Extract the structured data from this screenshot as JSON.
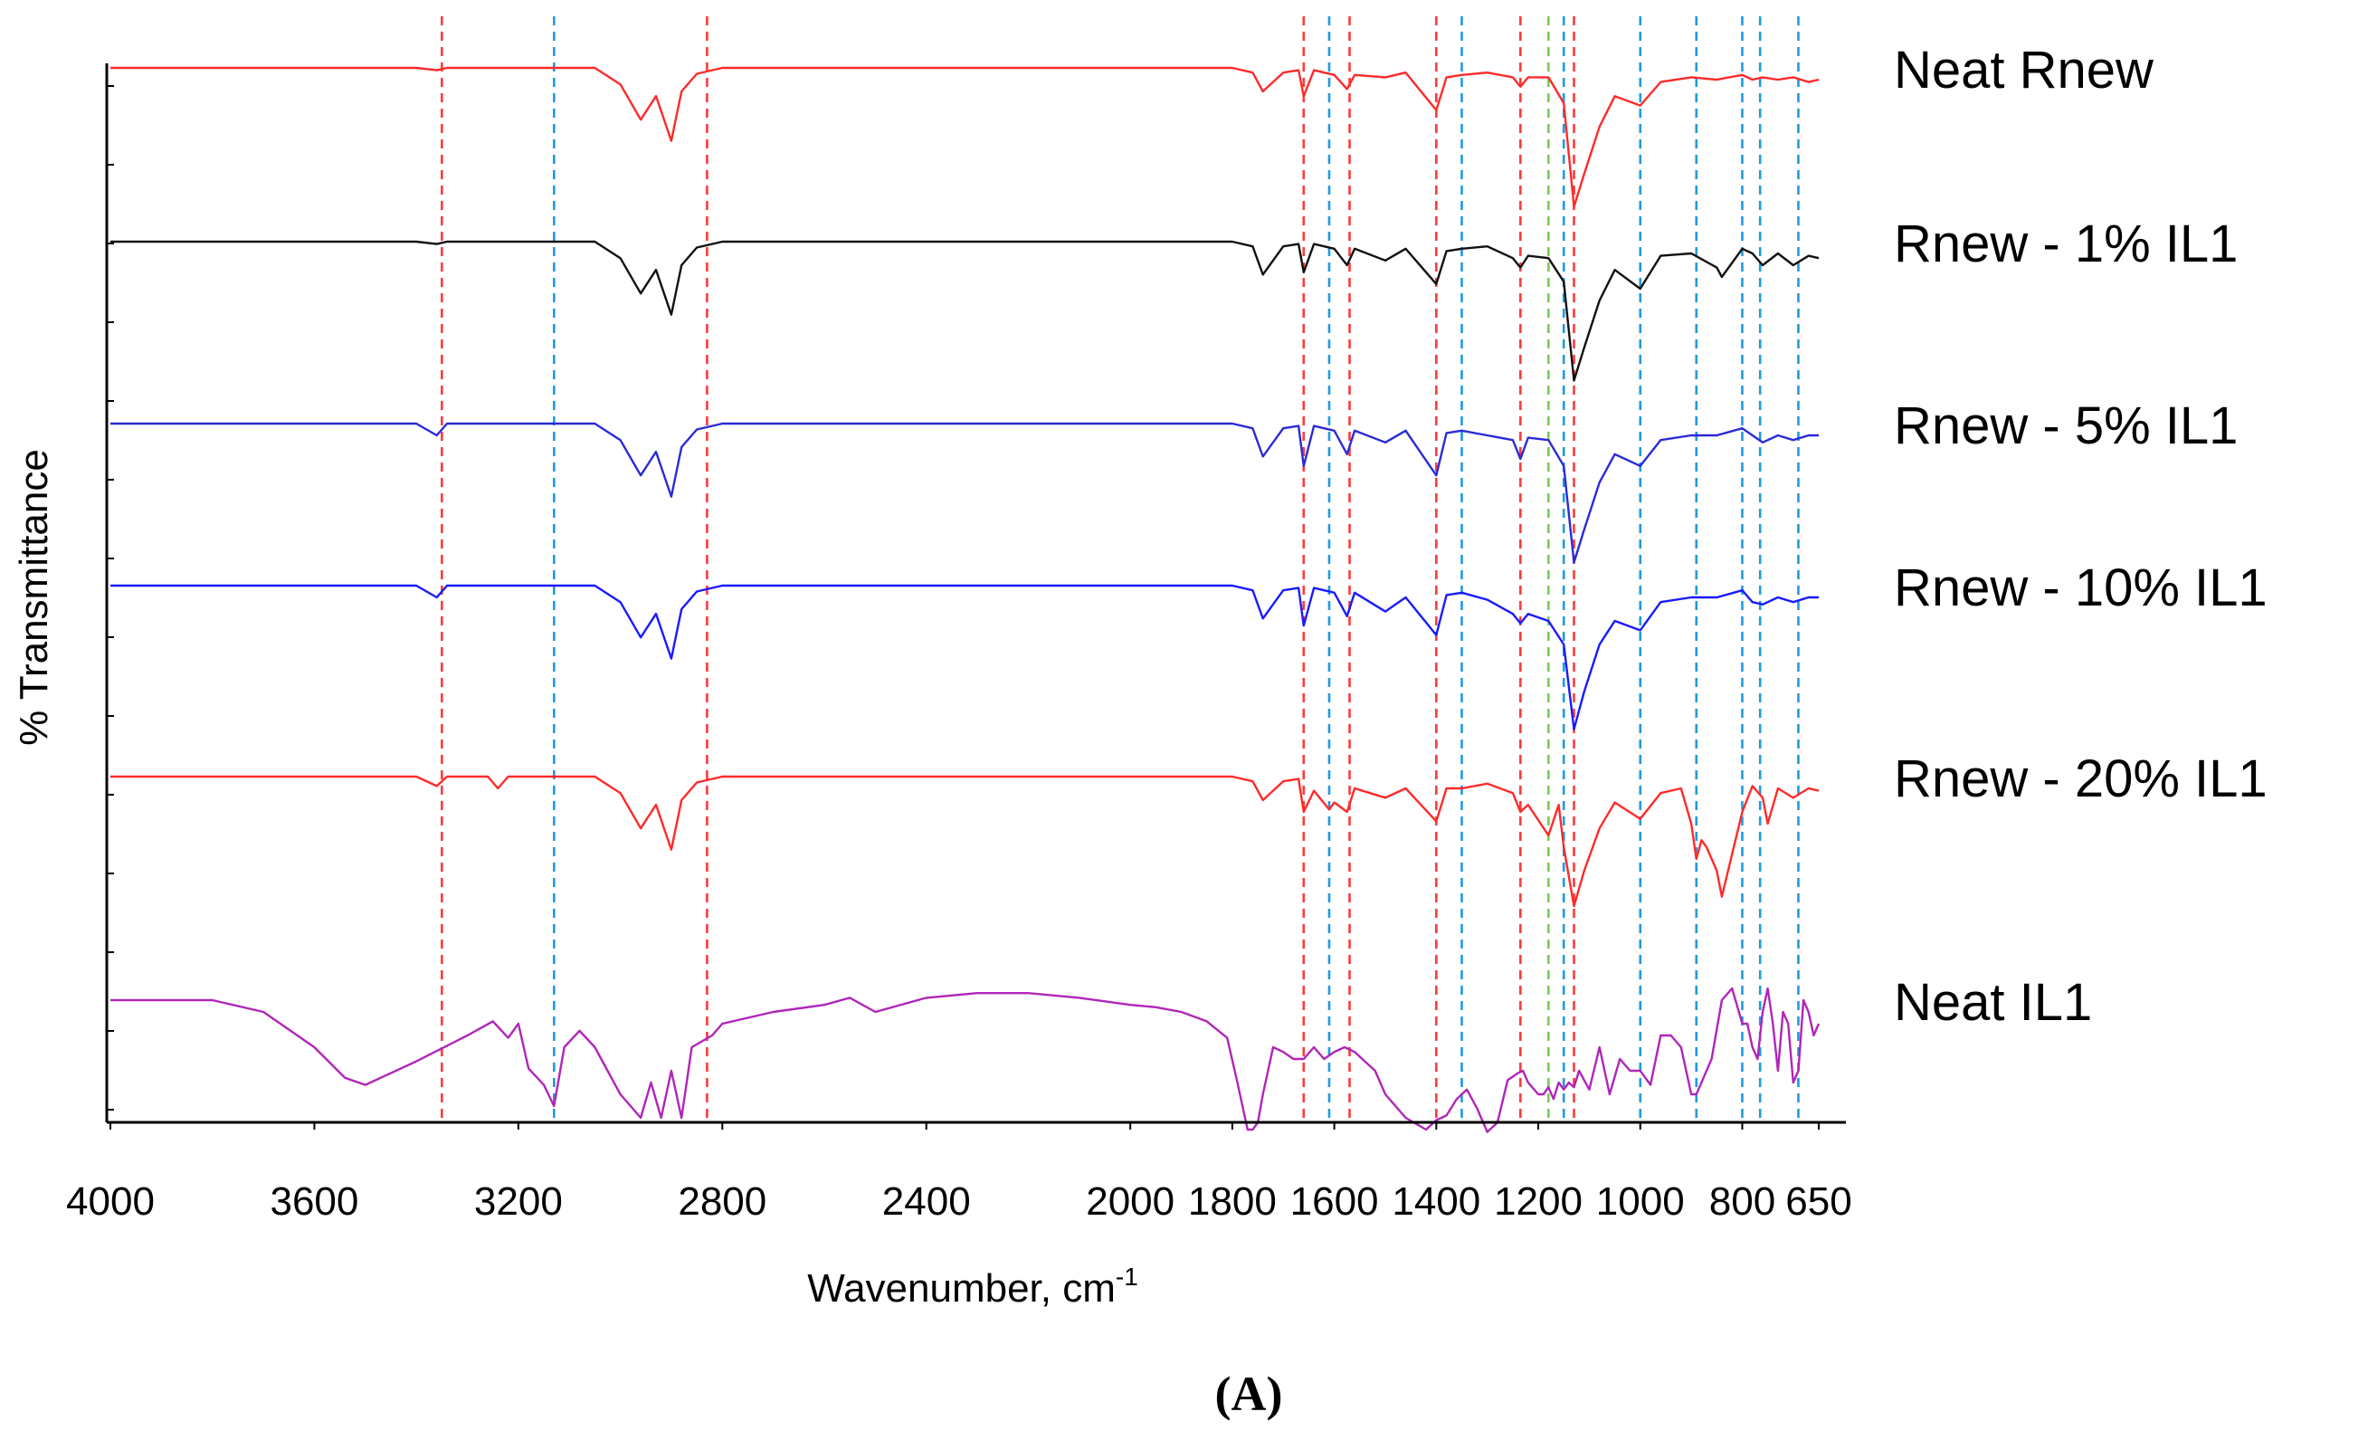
{
  "chart_data": {
    "type": "line",
    "title": "",
    "xlabel": "Wavenumber, cm",
    "xlabel_superscript": "-1",
    "ylabel": "% Transmittance",
    "panel_label": "(A)",
    "xlim": [
      4000,
      650
    ],
    "x_reversed": true,
    "x_ticks": [
      4000,
      3600,
      3200,
      2800,
      2400,
      2000,
      1800,
      1600,
      1400,
      1200,
      1000,
      800,
      650
    ],
    "grid": false,
    "legend": "labels to the right of each spectrum",
    "reference_lines": {
      "red": [
        3350,
        2830,
        1660,
        1570,
        1400,
        1235,
        1130
      ],
      "blue": [
        3130,
        1610,
        1350,
        1150,
        1000,
        890,
        800,
        765,
        690
      ],
      "green": [
        1180
      ]
    },
    "colors": {
      "red": "#ff2a2a",
      "black": "#111111",
      "blue_dark": "#2b2bd6",
      "blue": "#1a1aff",
      "purple": "#b026b8",
      "line_blue": "#1e9be0",
      "line_red": "#ff3a3a",
      "line_green": "#77cc55"
    },
    "series": [
      {
        "name": "Neat Rnew",
        "color": "#ff2a2a",
        "offset": 0,
        "x": [
          4000,
          3400,
          3360,
          3340,
          3050,
          3000,
          2960,
          2930,
          2900,
          2880,
          2850,
          2800,
          1800,
          1760,
          1740,
          1700,
          1670,
          1660,
          1640,
          1600,
          1575,
          1560,
          1500,
          1460,
          1400,
          1380,
          1350,
          1300,
          1250,
          1235,
          1220,
          1180,
          1150,
          1130,
          1110,
          1080,
          1050,
          1000,
          960,
          900,
          850,
          800,
          780,
          760,
          730,
          700,
          670,
          650
        ],
        "values": [
          0,
          0,
          2,
          0,
          0,
          14,
          44,
          24,
          62,
          20,
          5,
          0,
          0,
          4,
          20,
          4,
          2,
          24,
          2,
          6,
          18,
          6,
          8,
          4,
          36,
          8,
          6,
          4,
          8,
          16,
          8,
          8,
          30,
          118,
          90,
          50,
          24,
          32,
          12,
          8,
          10,
          6,
          10,
          8,
          10,
          8,
          12,
          10
        ]
      },
      {
        "name": "Rnew - 1% IL1",
        "color": "#111111",
        "offset": 1,
        "x": [
          4000,
          3400,
          3360,
          3340,
          3050,
          3000,
          2960,
          2930,
          2900,
          2880,
          2850,
          2800,
          1800,
          1760,
          1740,
          1700,
          1670,
          1660,
          1640,
          1600,
          1575,
          1560,
          1500,
          1460,
          1400,
          1380,
          1350,
          1300,
          1250,
          1235,
          1220,
          1180,
          1150,
          1130,
          1110,
          1080,
          1050,
          1000,
          960,
          900,
          850,
          840,
          800,
          780,
          760,
          730,
          700,
          670,
          650
        ],
        "values": [
          0,
          0,
          2,
          0,
          0,
          14,
          44,
          24,
          62,
          20,
          5,
          0,
          0,
          4,
          28,
          4,
          2,
          26,
          2,
          6,
          20,
          6,
          16,
          6,
          36,
          8,
          6,
          4,
          14,
          22,
          12,
          14,
          34,
          118,
          90,
          50,
          24,
          40,
          12,
          10,
          22,
          30,
          6,
          10,
          20,
          10,
          20,
          12,
          14
        ]
      },
      {
        "name": "Rnew - 5% IL1",
        "color": "#2b2bd6",
        "offset": 2,
        "x": [
          4000,
          3400,
          3360,
          3340,
          3050,
          3000,
          2960,
          2930,
          2900,
          2880,
          2850,
          2800,
          1800,
          1760,
          1740,
          1700,
          1670,
          1660,
          1640,
          1600,
          1575,
          1560,
          1500,
          1460,
          1400,
          1380,
          1350,
          1300,
          1250,
          1235,
          1220,
          1180,
          1150,
          1130,
          1110,
          1080,
          1050,
          1000,
          960,
          900,
          850,
          800,
          780,
          760,
          730,
          700,
          670,
          650
        ],
        "values": [
          0,
          0,
          10,
          0,
          0,
          14,
          44,
          24,
          62,
          20,
          5,
          0,
          0,
          4,
          28,
          4,
          2,
          36,
          2,
          6,
          26,
          6,
          16,
          6,
          44,
          8,
          6,
          10,
          14,
          30,
          12,
          14,
          36,
          118,
          90,
          50,
          26,
          36,
          14,
          10,
          10,
          4,
          10,
          16,
          10,
          14,
          10,
          10
        ]
      },
      {
        "name": "Rnew - 10% IL1",
        "color": "#1a1aff",
        "offset": 3,
        "x": [
          4000,
          3400,
          3360,
          3340,
          3050,
          3000,
          2960,
          2930,
          2900,
          2880,
          2850,
          2800,
          1800,
          1760,
          1740,
          1700,
          1670,
          1660,
          1640,
          1600,
          1575,
          1560,
          1500,
          1460,
          1400,
          1380,
          1350,
          1300,
          1250,
          1235,
          1220,
          1180,
          1150,
          1130,
          1110,
          1080,
          1050,
          1000,
          960,
          900,
          850,
          800,
          780,
          760,
          730,
          700,
          670,
          650
        ],
        "values": [
          0,
          0,
          10,
          0,
          0,
          14,
          44,
          24,
          62,
          20,
          5,
          0,
          0,
          4,
          28,
          4,
          2,
          34,
          2,
          6,
          26,
          6,
          22,
          10,
          42,
          8,
          6,
          12,
          24,
          32,
          24,
          30,
          50,
          122,
          90,
          50,
          30,
          38,
          14,
          10,
          10,
          4,
          14,
          16,
          10,
          14,
          10,
          10
        ]
      },
      {
        "name": "Rnew - 20% IL1",
        "color": "#ff2a2a",
        "offset": 4,
        "x": [
          4000,
          3400,
          3360,
          3340,
          3260,
          3240,
          3220,
          3050,
          3000,
          2960,
          2930,
          2900,
          2880,
          2850,
          2800,
          1800,
          1760,
          1740,
          1700,
          1670,
          1660,
          1640,
          1610,
          1600,
          1575,
          1560,
          1500,
          1460,
          1400,
          1380,
          1350,
          1300,
          1250,
          1235,
          1220,
          1180,
          1160,
          1150,
          1130,
          1110,
          1080,
          1050,
          1000,
          960,
          920,
          900,
          890,
          880,
          870,
          850,
          840,
          800,
          780,
          760,
          750,
          730,
          700,
          670,
          650
        ],
        "values": [
          0,
          0,
          8,
          0,
          0,
          10,
          0,
          0,
          14,
          44,
          24,
          62,
          20,
          5,
          0,
          0,
          4,
          20,
          4,
          2,
          30,
          12,
          28,
          22,
          30,
          10,
          18,
          10,
          38,
          10,
          10,
          6,
          14,
          30,
          24,
          50,
          24,
          60,
          110,
          80,
          44,
          22,
          36,
          14,
          10,
          40,
          70,
          54,
          60,
          80,
          102,
          30,
          8,
          18,
          40,
          10,
          18,
          10,
          12
        ]
      },
      {
        "name": "Neat IL1",
        "color": "#b026b8",
        "offset": 5,
        "x": [
          4000,
          3800,
          3700,
          3600,
          3540,
          3500,
          3460,
          3400,
          3300,
          3250,
          3220,
          3200,
          3180,
          3150,
          3130,
          3110,
          3080,
          3050,
          3000,
          2980,
          2960,
          2940,
          2920,
          2900,
          2880,
          2860,
          2820,
          2800,
          2700,
          2600,
          2550,
          2500,
          2400,
          2300,
          2200,
          2100,
          2000,
          1950,
          1900,
          1850,
          1810,
          1790,
          1770,
          1760,
          1750,
          1740,
          1720,
          1700,
          1680,
          1660,
          1640,
          1620,
          1600,
          1580,
          1560,
          1520,
          1500,
          1460,
          1420,
          1400,
          1380,
          1360,
          1340,
          1320,
          1300,
          1280,
          1260,
          1240,
          1230,
          1220,
          1200,
          1190,
          1180,
          1170,
          1160,
          1150,
          1140,
          1130,
          1120,
          1100,
          1080,
          1060,
          1040,
          1020,
          1000,
          980,
          960,
          940,
          920,
          900,
          890,
          880,
          860,
          840,
          820,
          800,
          790,
          780,
          770,
          760,
          750,
          740,
          730,
          720,
          710,
          700,
          690,
          680,
          670,
          660,
          650
        ],
        "values": [
          0,
          0,
          10,
          40,
          66,
          72,
          64,
          52,
          30,
          18,
          32,
          20,
          58,
          72,
          90,
          40,
          26,
          40,
          80,
          90,
          100,
          70,
          100,
          60,
          100,
          40,
          30,
          20,
          10,
          4,
          -2,
          10,
          -2,
          -6,
          -6,
          -2,
          4,
          6,
          10,
          18,
          32,
          70,
          110,
          110,
          104,
          80,
          40,
          44,
          50,
          50,
          40,
          50,
          44,
          40,
          44,
          60,
          80,
          100,
          110,
          102,
          98,
          84,
          76,
          92,
          112,
          104,
          68,
          62,
          60,
          70,
          80,
          80,
          74,
          84,
          70,
          76,
          70,
          74,
          60,
          76,
          40,
          80,
          50,
          60,
          60,
          72,
          30,
          30,
          40,
          80,
          80,
          70,
          50,
          0,
          -10,
          20,
          20,
          40,
          50,
          10,
          -10,
          20,
          60,
          10,
          20,
          70,
          60,
          0,
          10,
          30,
          20
        ]
      }
    ]
  }
}
